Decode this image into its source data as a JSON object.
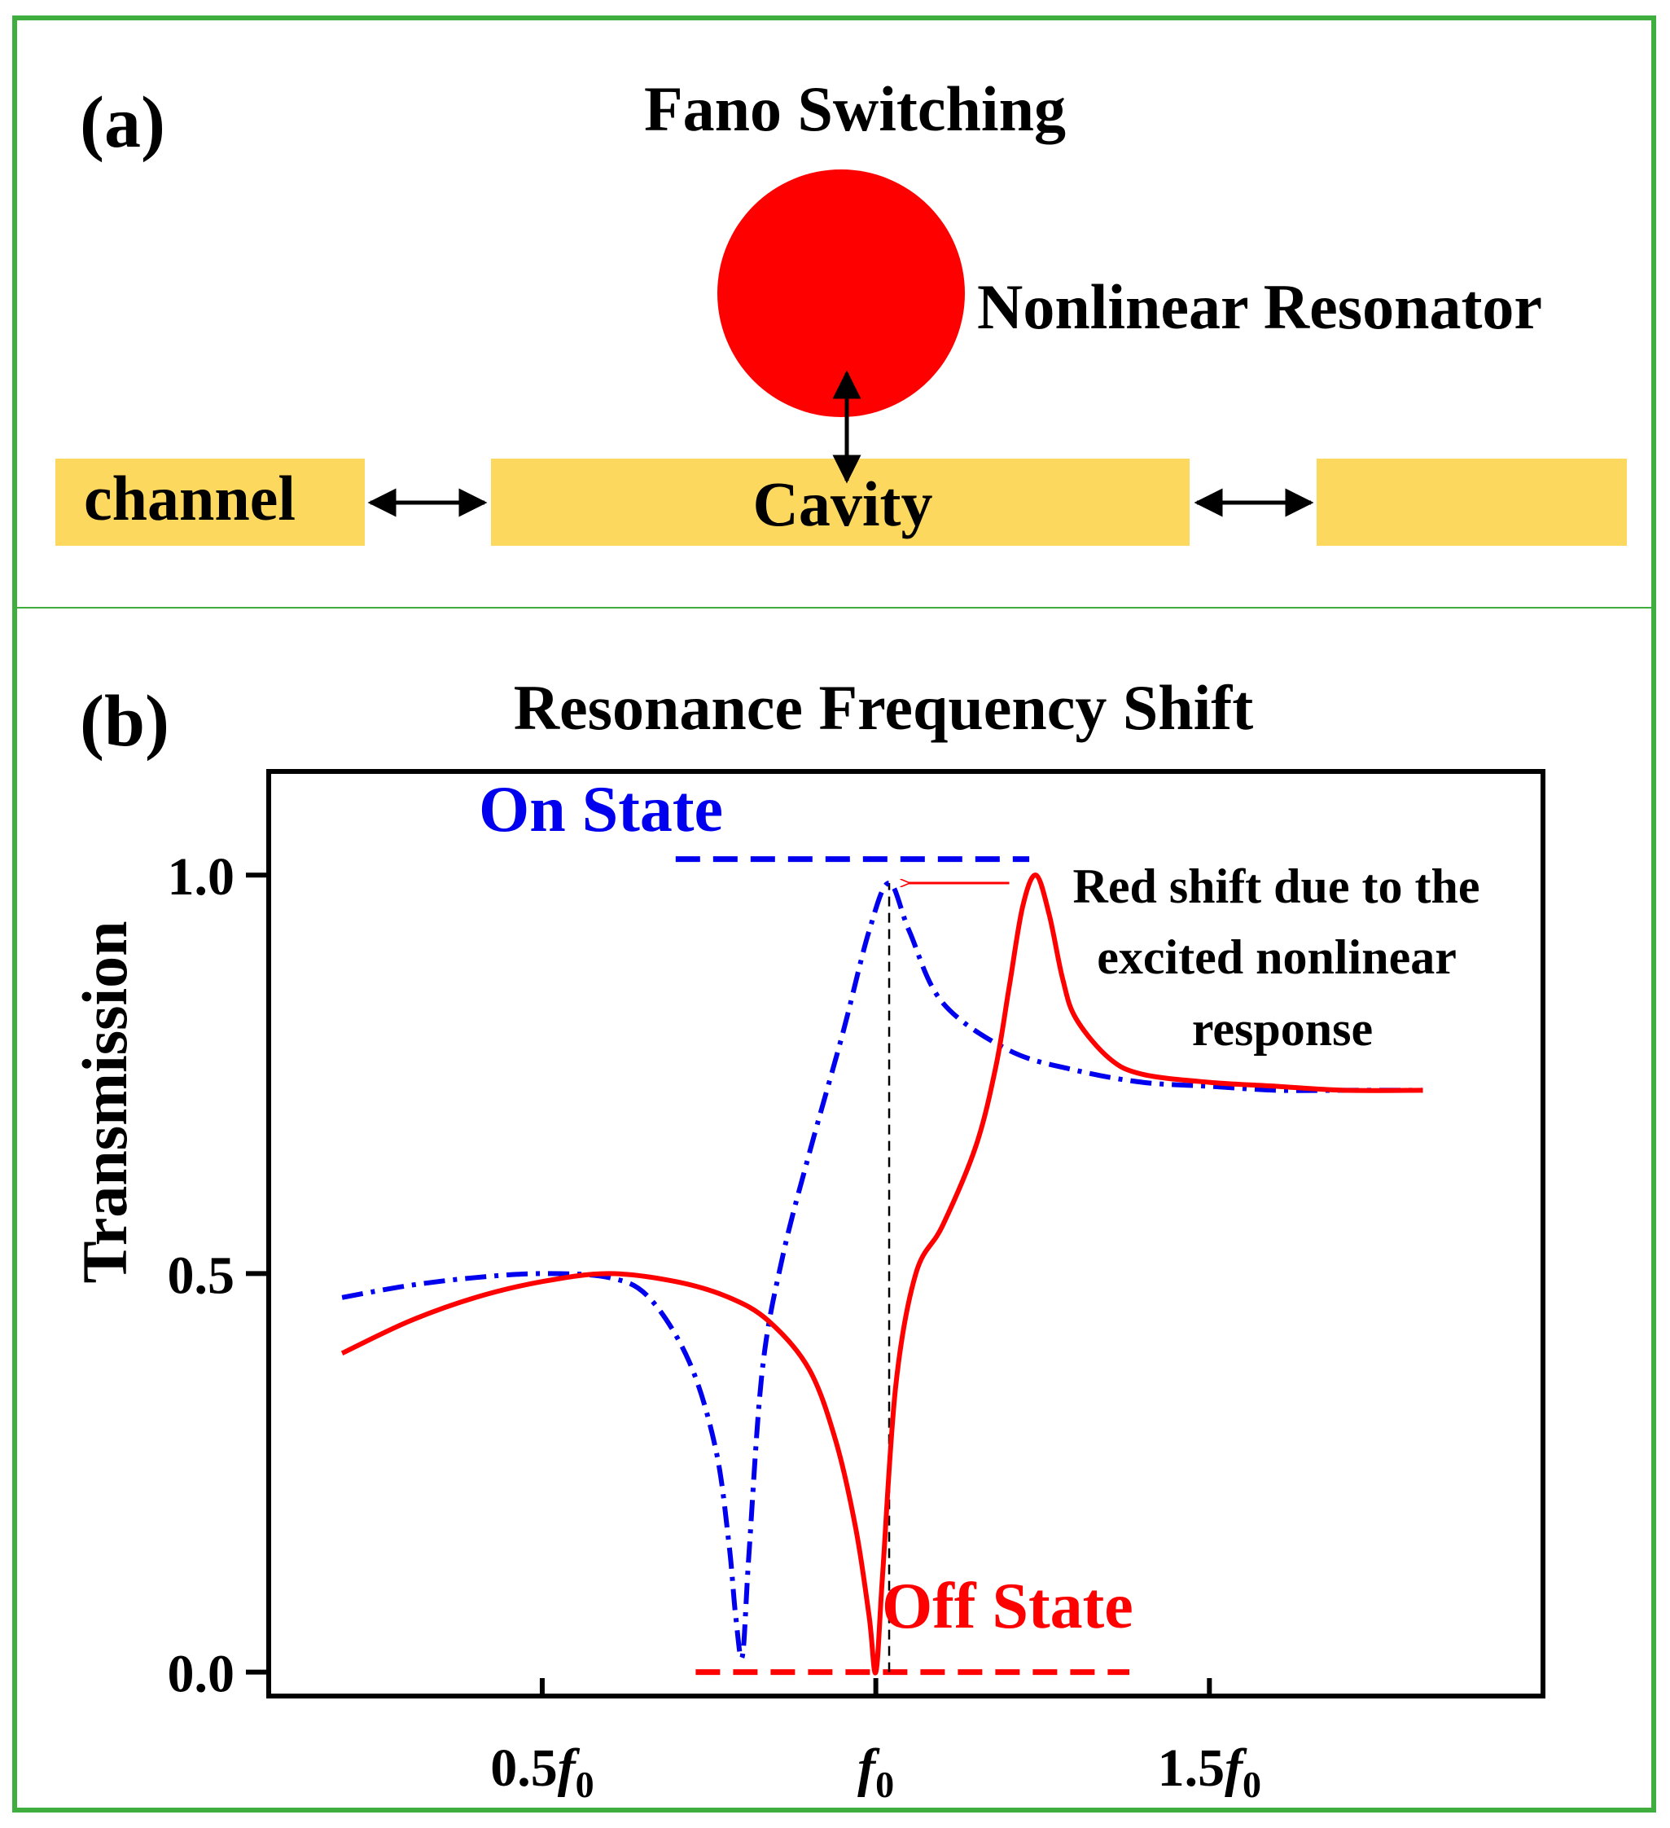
{
  "panel_a": {
    "label": "(a)",
    "title": "Fano Switching",
    "resonator_label": "Nonlinear Resonator",
    "channel_label": "channel",
    "cavity_label": "Cavity"
  },
  "panel_b": {
    "label": "(b)",
    "title": "Resonance Frequency Shift",
    "on_state_label": "On State",
    "off_state_label": "Off State",
    "annotation_lines": [
      "Red shift due to the",
      "excited nonlinear",
      "response"
    ]
  },
  "colors": {
    "frame": "#3fae3f",
    "waveguide": "#fdd85e",
    "resonator": "#ff0000",
    "on_curve": "#0000ee",
    "off_curve": "#ff0000"
  },
  "chart_data": {
    "type": "line",
    "title": "Resonance Frequency Shift",
    "xlabel": "",
    "ylabel": "Transmission",
    "xlim": [
      0.09,
      2.0
    ],
    "ylim": [
      -0.03,
      1.13
    ],
    "y_ticks": [
      {
        "value": 0.0,
        "label": "0.0"
      },
      {
        "value": 0.5,
        "label": "0.5"
      },
      {
        "value": 1.0,
        "label": "1.0"
      }
    ],
    "x_ticks": [
      {
        "value": 0.5,
        "label_coef": "0.5",
        "label_sym": "f",
        "label_sub": "0"
      },
      {
        "value": 1.0,
        "label_coef": "",
        "label_sym": "f",
        "label_sub": "0"
      },
      {
        "value": 1.5,
        "label_coef": "1.5",
        "label_sym": "f",
        "label_sub": "0"
      }
    ],
    "series": [
      {
        "name": "On State",
        "style": "dash-dot",
        "color": "#0000ee",
        "x": [
          0.2,
          0.3,
          0.4,
          0.5,
          0.6,
          0.66,
          0.72,
          0.76,
          0.78,
          0.79,
          0.8,
          0.81,
          0.83,
          0.86,
          0.9,
          0.95,
          0.99,
          1.02,
          1.05,
          1.1,
          1.2,
          1.3,
          1.4,
          1.5,
          1.6,
          1.7,
          1.82
        ],
        "y": [
          0.47,
          0.485,
          0.495,
          0.5,
          0.495,
          0.47,
          0.39,
          0.28,
          0.16,
          0.07,
          0.02,
          0.15,
          0.38,
          0.52,
          0.65,
          0.8,
          0.93,
          0.99,
          0.93,
          0.84,
          0.78,
          0.755,
          0.74,
          0.735,
          0.73,
          0.73,
          0.73
        ]
      },
      {
        "name": "Off State",
        "style": "solid",
        "color": "#ff0000",
        "x": [
          0.2,
          0.3,
          0.4,
          0.5,
          0.6,
          0.7,
          0.78,
          0.84,
          0.9,
          0.94,
          0.97,
          0.99,
          1.0,
          1.01,
          1.03,
          1.06,
          1.1,
          1.15,
          1.18,
          1.2,
          1.22,
          1.24,
          1.26,
          1.28,
          1.3,
          1.35,
          1.4,
          1.5,
          1.6,
          1.7,
          1.82
        ],
        "y": [
          0.4,
          0.44,
          0.47,
          0.49,
          0.5,
          0.49,
          0.47,
          0.44,
          0.38,
          0.29,
          0.18,
          0.07,
          0.0,
          0.12,
          0.36,
          0.5,
          0.56,
          0.66,
          0.76,
          0.86,
          0.96,
          1.0,
          0.95,
          0.87,
          0.82,
          0.77,
          0.75,
          0.74,
          0.735,
          0.73,
          0.73
        ]
      }
    ],
    "reference_lines": [
      {
        "name": "on-state-level",
        "y": 1.02,
        "x": [
          0.7,
          1.23
        ],
        "color": "#0000ee"
      },
      {
        "name": "off-state-level",
        "y": 0.0,
        "x": [
          0.73,
          1.38
        ],
        "color": "#ff0000"
      },
      {
        "name": "f0-marker",
        "x": 1.02,
        "y": [
          0.0,
          0.99
        ],
        "color": "#000000"
      }
    ],
    "annotations": [
      {
        "text": "Red shift due to the excited nonlinear response",
        "arrow_from_x": 1.2,
        "arrow_to_x": 1.05,
        "y": 0.99
      }
    ]
  }
}
